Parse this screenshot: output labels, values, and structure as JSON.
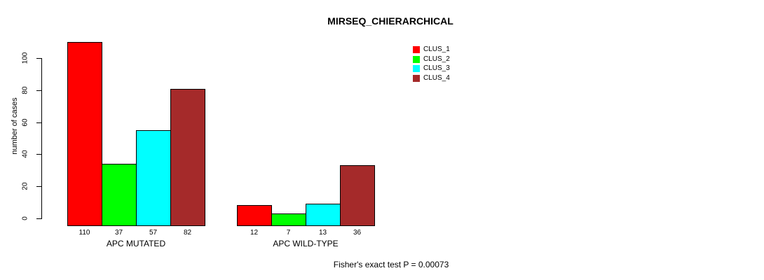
{
  "chart_data": {
    "type": "bar",
    "title": "MIRSEQ_CHIERARCHICAL",
    "xlabel": "",
    "ylabel": "number of cases",
    "categories": [
      "APC MUTATED",
      "APC WILD-TYPE"
    ],
    "series": [
      {
        "name": "CLUS_1",
        "color": "#ff0000",
        "values": [
          110,
          12
        ]
      },
      {
        "name": "CLUS_2",
        "color": "#00ff00",
        "values": [
          37,
          7
        ]
      },
      {
        "name": "CLUS_3",
        "color": "#00ffff",
        "values": [
          57,
          13
        ]
      },
      {
        "name": "CLUS_4",
        "color": "#a52a2a",
        "values": [
          82,
          36
        ]
      }
    ],
    "bar_value_labels": [
      [
        "110",
        "37",
        "57",
        "82"
      ],
      [
        "12",
        "7",
        "13",
        "36"
      ]
    ],
    "y_ticks": [
      "0",
      "20",
      "40",
      "60",
      "80",
      "100"
    ],
    "ylim": [
      0,
      114
    ],
    "grid": false,
    "legend_position": "top-right",
    "annotation": "Fisher's exact test P = 0.00073"
  }
}
